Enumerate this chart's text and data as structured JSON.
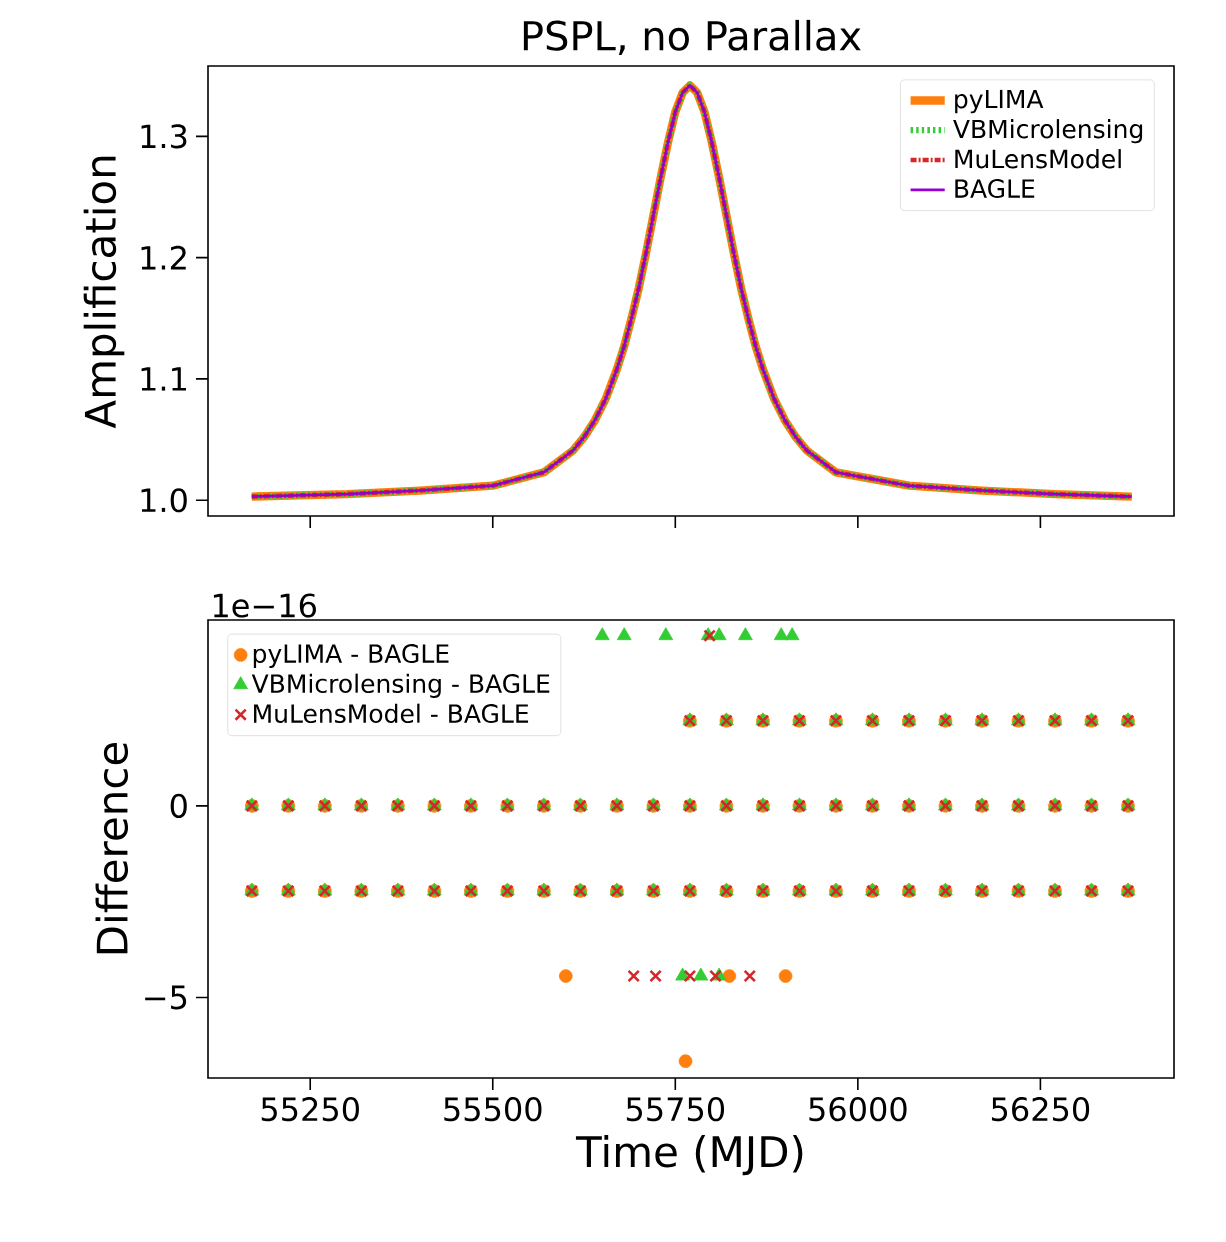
{
  "chart_data": [
    {
      "type": "line",
      "title": "PSPL, no Parallax",
      "ylabel": "Amplification",
      "legend": "top right",
      "marker": "none",
      "tick_labels": "y",
      "xlim": [
        55110,
        56433
      ],
      "ylim": [
        0.987,
        1.358
      ],
      "xticks": [
        {
          "value": 55250,
          "label": null
        },
        {
          "value": 55500,
          "label": null
        },
        {
          "value": 55750,
          "label": null
        },
        {
          "value": 56000,
          "label": null
        },
        {
          "value": 56250,
          "label": null
        }
      ],
      "yticks": [
        {
          "value": 1.0,
          "label": "1.0"
        },
        {
          "value": 1.1,
          "label": "1.1"
        },
        {
          "value": 1.2,
          "label": "1.2"
        },
        {
          "value": 1.3,
          "label": "1.3"
        }
      ],
      "x": [
        55170,
        55300,
        55400,
        55500,
        55570,
        55610,
        55625,
        55640,
        55655,
        55670,
        55680,
        55690,
        55700,
        55710,
        55720,
        55730,
        55740,
        55750,
        55760,
        55770,
        55780,
        55790,
        55800,
        55810,
        55820,
        55830,
        55840,
        55850,
        55860,
        55870,
        55885,
        55900,
        55915,
        55930,
        55970,
        56070,
        56170,
        56270,
        56375
      ],
      "series": [
        {
          "name": "pyLIMA",
          "color": "#ff7f0e",
          "line_style": "solid",
          "values": [
            1.003,
            1.005,
            1.008,
            1.012,
            1.023,
            1.041,
            1.052,
            1.066,
            1.084,
            1.108,
            1.127,
            1.15,
            1.175,
            1.204,
            1.235,
            1.266,
            1.295,
            1.32,
            1.336,
            1.342,
            1.336,
            1.32,
            1.295,
            1.266,
            1.235,
            1.204,
            1.175,
            1.15,
            1.127,
            1.108,
            1.084,
            1.066,
            1.052,
            1.041,
            1.023,
            1.012,
            1.008,
            1.005,
            1.003
          ]
        },
        {
          "name": "VBMicrolensing",
          "color": "#32cd32",
          "line_style": "dotted",
          "values": [
            1.003,
            1.005,
            1.008,
            1.012,
            1.023,
            1.041,
            1.052,
            1.066,
            1.084,
            1.108,
            1.127,
            1.15,
            1.175,
            1.204,
            1.235,
            1.266,
            1.295,
            1.32,
            1.336,
            1.342,
            1.336,
            1.32,
            1.295,
            1.266,
            1.235,
            1.204,
            1.175,
            1.15,
            1.127,
            1.108,
            1.084,
            1.066,
            1.052,
            1.041,
            1.023,
            1.012,
            1.008,
            1.005,
            1.003
          ]
        },
        {
          "name": "MuLensModel",
          "color": "#d62728",
          "line_style": "dashdot",
          "values": [
            1.003,
            1.005,
            1.008,
            1.012,
            1.023,
            1.041,
            1.052,
            1.066,
            1.084,
            1.108,
            1.127,
            1.15,
            1.175,
            1.204,
            1.235,
            1.266,
            1.295,
            1.32,
            1.336,
            1.342,
            1.336,
            1.32,
            1.295,
            1.266,
            1.235,
            1.204,
            1.175,
            1.15,
            1.127,
            1.108,
            1.084,
            1.066,
            1.052,
            1.041,
            1.023,
            1.012,
            1.008,
            1.005,
            1.003
          ]
        },
        {
          "name": "BAGLE",
          "color": "#9400d3",
          "line_style": "solid",
          "values": [
            1.003,
            1.005,
            1.008,
            1.012,
            1.023,
            1.041,
            1.052,
            1.066,
            1.084,
            1.108,
            1.127,
            1.15,
            1.175,
            1.204,
            1.235,
            1.266,
            1.295,
            1.32,
            1.336,
            1.342,
            1.336,
            1.32,
            1.295,
            1.266,
            1.235,
            1.204,
            1.175,
            1.15,
            1.127,
            1.108,
            1.084,
            1.066,
            1.052,
            1.041,
            1.023,
            1.012,
            1.008,
            1.005,
            1.003
          ]
        }
      ]
    },
    {
      "type": "scatter",
      "xlabel": "Time (MJD)",
      "ylabel": "Difference",
      "legend": "top left",
      "annotations": [
        "1e−16"
      ],
      "xlim": [
        55110,
        56433
      ],
      "ylim": [
        -7.1,
        4.85
      ],
      "xticks": [
        55250,
        55500,
        55750,
        56000,
        56250
      ],
      "yticks": [
        {
          "value": -5,
          "label": "−5"
        },
        0
      ],
      "series": [
        {
          "name": "pyLIMA - BAGLE",
          "color": "#ff7f0e",
          "marker": "circle",
          "x": [
            55170,
            55220,
            55270,
            55320,
            55370,
            55420,
            55470,
            55520,
            55570,
            55620,
            55670,
            55720,
            55770,
            55820,
            55870,
            55920,
            55970,
            56020,
            56070,
            56120,
            56170,
            56220,
            56270,
            56320,
            56370,
            55770,
            55820,
            55870,
            55920,
            55970,
            56020,
            56070,
            56120,
            56170,
            56220,
            56270,
            56320,
            56370,
            55170,
            55220,
            55270,
            55320,
            55370,
            55420,
            55470,
            55520,
            55570,
            55620,
            55670,
            55720,
            55770,
            55820,
            55870,
            55920,
            55970,
            56020,
            56070,
            56120,
            56170,
            56220,
            56270,
            56320,
            56370,
            55600,
            55824,
            55901,
            55764
          ],
          "values": [
            0,
            0,
            0,
            0,
            0,
            0,
            0,
            0,
            0,
            0,
            0,
            0,
            0,
            0,
            0,
            0,
            0,
            0,
            0,
            0,
            0,
            0,
            0,
            0,
            0,
            2.22,
            2.22,
            2.22,
            2.22,
            2.22,
            2.22,
            2.22,
            2.22,
            2.22,
            2.22,
            2.22,
            2.22,
            2.22,
            -2.22,
            -2.22,
            -2.22,
            -2.22,
            -2.22,
            -2.22,
            -2.22,
            -2.22,
            -2.22,
            -2.22,
            -2.22,
            -2.22,
            -2.22,
            -2.22,
            -2.22,
            -2.22,
            -2.22,
            -2.22,
            -2.22,
            -2.22,
            -2.22,
            -2.22,
            -2.22,
            -2.22,
            -2.22,
            -4.44,
            -4.44,
            -4.44,
            -6.66
          ]
        },
        {
          "name": "VBMicrolensing - BAGLE",
          "color": "#32cd32",
          "marker": "triangle",
          "x": [
            55170,
            55220,
            55270,
            55320,
            55370,
            55420,
            55470,
            55520,
            55570,
            55620,
            55670,
            55720,
            55770,
            55820,
            55870,
            55920,
            55970,
            56020,
            56070,
            56120,
            56170,
            56220,
            56270,
            56320,
            56370,
            55770,
            55820,
            55870,
            55920,
            55970,
            56020,
            56070,
            56120,
            56170,
            56220,
            56270,
            56320,
            56370,
            55170,
            55220,
            55270,
            55320,
            55370,
            55420,
            55470,
            55520,
            55570,
            55620,
            55670,
            55720,
            55770,
            55820,
            55870,
            55920,
            55970,
            56020,
            56070,
            56120,
            56170,
            56220,
            56270,
            56320,
            56370,
            55650,
            55680,
            55737,
            55795,
            55810,
            55846,
            55895,
            55910,
            55760,
            55785,
            55810
          ],
          "values": [
            0,
            0,
            0,
            0,
            0,
            0,
            0,
            0,
            0,
            0,
            0,
            0,
            0,
            0,
            0,
            0,
            0,
            0,
            0,
            0,
            0,
            0,
            0,
            0,
            0,
            2.22,
            2.22,
            2.22,
            2.22,
            2.22,
            2.22,
            2.22,
            2.22,
            2.22,
            2.22,
            2.22,
            2.22,
            2.22,
            -2.22,
            -2.22,
            -2.22,
            -2.22,
            -2.22,
            -2.22,
            -2.22,
            -2.22,
            -2.22,
            -2.22,
            -2.22,
            -2.22,
            -2.22,
            -2.22,
            -2.22,
            -2.22,
            -2.22,
            -2.22,
            -2.22,
            -2.22,
            -2.22,
            -2.22,
            -2.22,
            -2.22,
            -2.22,
            4.44,
            4.44,
            4.44,
            4.44,
            4.44,
            4.44,
            4.44,
            4.44,
            -4.44,
            -4.44,
            -4.44
          ]
        },
        {
          "name": "MuLensModel - BAGLE",
          "color": "#d62728",
          "marker": "cross",
          "x": [
            55170,
            55220,
            55270,
            55320,
            55370,
            55420,
            55470,
            55520,
            55570,
            55620,
            55670,
            55720,
            55770,
            55820,
            55870,
            55920,
            55970,
            56020,
            56070,
            56120,
            56170,
            56220,
            56270,
            56320,
            56370,
            55770,
            55820,
            55870,
            55920,
            55970,
            56020,
            56070,
            56120,
            56170,
            56220,
            56270,
            56320,
            56370,
            55170,
            55220,
            55270,
            55320,
            55370,
            55420,
            55470,
            55520,
            55570,
            55620,
            55670,
            55720,
            55770,
            55820,
            55870,
            55920,
            55970,
            56020,
            56070,
            56120,
            56170,
            56220,
            56270,
            56320,
            56370,
            55797,
            55693,
            55723,
            55770,
            55805,
            55852
          ],
          "values": [
            0,
            0,
            0,
            0,
            0,
            0,
            0,
            0,
            0,
            0,
            0,
            0,
            0,
            0,
            0,
            0,
            0,
            0,
            0,
            0,
            0,
            0,
            0,
            0,
            0,
            2.22,
            2.22,
            2.22,
            2.22,
            2.22,
            2.22,
            2.22,
            2.22,
            2.22,
            2.22,
            2.22,
            2.22,
            2.22,
            -2.22,
            -2.22,
            -2.22,
            -2.22,
            -2.22,
            -2.22,
            -2.22,
            -2.22,
            -2.22,
            -2.22,
            -2.22,
            -2.22,
            -2.22,
            -2.22,
            -2.22,
            -2.22,
            -2.22,
            -2.22,
            -2.22,
            -2.22,
            -2.22,
            -2.22,
            -2.22,
            -2.22,
            -2.22,
            4.44,
            -4.44,
            -4.44,
            -4.44,
            -4.44,
            -4.44
          ]
        }
      ]
    }
  ]
}
